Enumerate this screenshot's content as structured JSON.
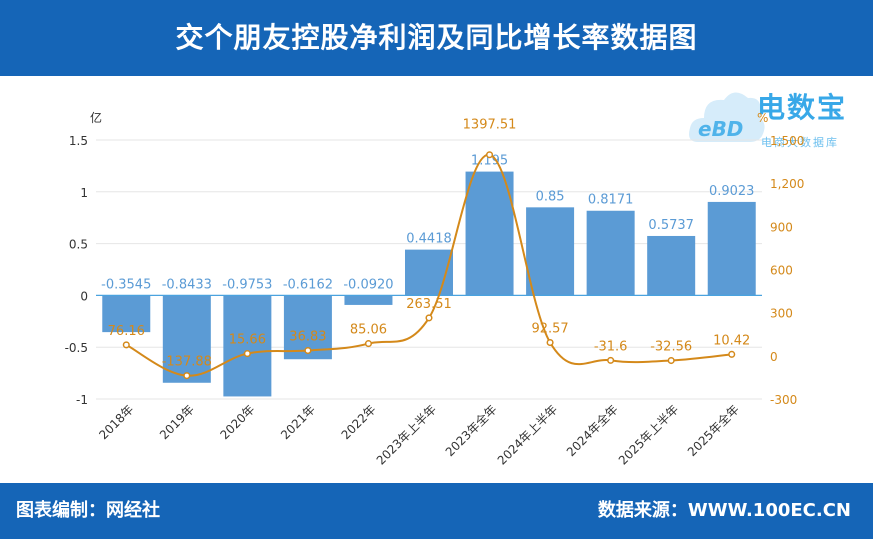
{
  "header": {
    "title": "交个朋友控股净利润及同比增长率数据图"
  },
  "footer": {
    "left_text": "图表编制：网经社",
    "right_text": "数据来源：WWW.100EC.CN"
  },
  "logo": {
    "name": "电数宝",
    "subtitle": "电商大数据库",
    "icon_name": "cloud-ebd-logo-icon",
    "icon_text": "eBD"
  },
  "colors": {
    "bar": "#5b9bd5",
    "line": "#d4891a",
    "header_bg": "#1565b7",
    "bar_label": "#5b9bd5",
    "line_label": "#d4891a"
  },
  "chart_data": {
    "type": "bar+line",
    "title": "交个朋友控股净利润及同比增长率数据图",
    "categories": [
      "2018年",
      "2019年",
      "2020年",
      "2021年",
      "2022年",
      "2023年上半年",
      "2023年全年",
      "2024年上半年",
      "2024年全年",
      "2025年上半年",
      "2025年全年"
    ],
    "series": [
      {
        "name": "净利润",
        "type": "bar",
        "axis": "left",
        "unit": "亿",
        "values": [
          -0.3545,
          -0.8433,
          -0.9753,
          -0.6162,
          -0.092,
          0.4418,
          1.195,
          0.85,
          0.8171,
          0.5737,
          0.9023
        ],
        "labels": [
          "-0.3545",
          "-0.8433",
          "-0.9753",
          "-0.6162",
          "-0.0920",
          "0.4418",
          "1.195",
          "0.85",
          "0.8171",
          "0.5737",
          "0.9023"
        ]
      },
      {
        "name": "同比增长率",
        "type": "line",
        "axis": "right",
        "unit": "%",
        "values": [
          76.16,
          -137.88,
          15.66,
          36.83,
          85.06,
          263.51,
          1397.51,
          92.57,
          -31.6,
          -32.56,
          10.42
        ],
        "labels": [
          "76.16",
          "-137.88",
          "15.66",
          "36.83",
          "85.06",
          "263.51",
          "1397.51",
          "92.57",
          "-31.6",
          "-32.56",
          "10.42"
        ]
      }
    ],
    "left_axis": {
      "unit": "亿",
      "min": -1,
      "max": 1.5,
      "ticks": [
        -1,
        -0.5,
        0,
        0.5,
        1,
        1.5
      ],
      "tick_labels": [
        "-1",
        "-0.5",
        "0",
        "0.5",
        "1",
        "1.5"
      ]
    },
    "right_axis": {
      "unit": "%",
      "min": -300,
      "max": 1500,
      "ticks": [
        -300,
        0,
        300,
        600,
        900,
        1200,
        1500
      ],
      "tick_labels": [
        "-300",
        "0",
        "300",
        "600",
        "900",
        "1,200",
        "1,500"
      ]
    },
    "grid": true,
    "legend": "none"
  }
}
